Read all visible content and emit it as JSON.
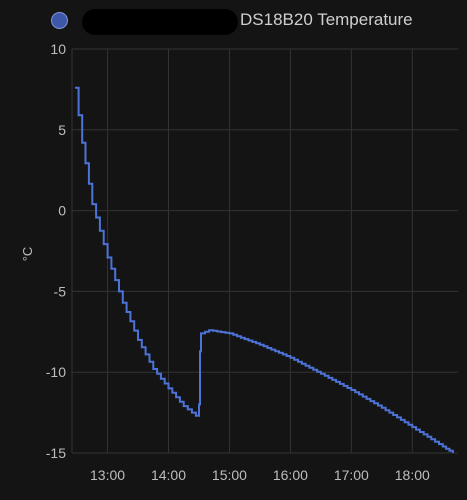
{
  "legend": {
    "series_label": "DS18B20 Temperature",
    "dot_color": "#3f57a8"
  },
  "chart_data": {
    "type": "line",
    "title": "",
    "xlabel": "",
    "ylabel": "°C",
    "x_ticks": [
      "13:00",
      "14:00",
      "15:00",
      "16:00",
      "17:00",
      "18:00"
    ],
    "y_ticks": [
      10,
      5,
      0,
      -5,
      -10,
      -15
    ],
    "xlim": [
      "12:25",
      "18:45"
    ],
    "ylim": [
      -15,
      10
    ],
    "grid": true,
    "line_color": "#4d73d9",
    "series": [
      {
        "values": [
          {
            "x": "12:28",
            "y": 7.6
          },
          {
            "x": "12:35",
            "y": 4.2
          },
          {
            "x": "12:45",
            "y": 0.4
          },
          {
            "x": "13:00",
            "y": -2.9
          },
          {
            "x": "13:15",
            "y": -5.7
          },
          {
            "x": "13:30",
            "y": -8.0
          },
          {
            "x": "13:45",
            "y": -9.8
          },
          {
            "x": "14:00",
            "y": -11.0
          },
          {
            "x": "14:15",
            "y": -12.1
          },
          {
            "x": "14:27",
            "y": -12.7
          },
          {
            "x": "14:30",
            "y": -12.0
          },
          {
            "x": "14:31",
            "y": -8.7
          },
          {
            "x": "14:32",
            "y": -7.6
          },
          {
            "x": "14:40",
            "y": -7.4
          },
          {
            "x": "15:00",
            "y": -7.6
          },
          {
            "x": "15:30",
            "y": -8.3
          },
          {
            "x": "16:00",
            "y": -9.1
          },
          {
            "x": "16:30",
            "y": -10.1
          },
          {
            "x": "17:00",
            "y": -11.1
          },
          {
            "x": "17:30",
            "y": -12.2
          },
          {
            "x": "18:00",
            "y": -13.4
          },
          {
            "x": "18:30",
            "y": -14.6
          },
          {
            "x": "18:40",
            "y": -15.0
          }
        ]
      }
    ]
  }
}
